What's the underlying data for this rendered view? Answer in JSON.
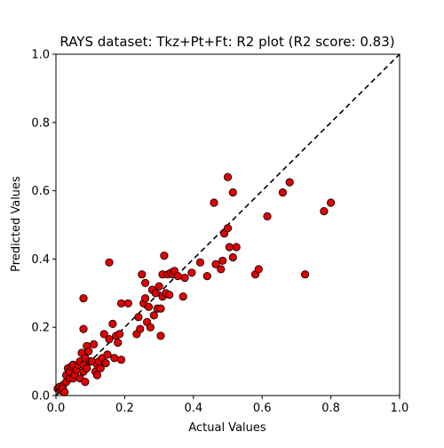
{
  "chart_data": {
    "type": "scatter",
    "title": "RAYS dataset: Tkz+Pt+Ft: R2 plot (R2 score: 0.83)",
    "xlabel": "Actual Values",
    "ylabel": "Predicted Values",
    "xlim": [
      0.0,
      1.0
    ],
    "ylim": [
      0.0,
      1.0
    ],
    "xticks": [
      "0.0",
      "0.2",
      "0.4",
      "0.6",
      "0.8",
      "1.0"
    ],
    "yticks": [
      "0.0",
      "0.2",
      "0.4",
      "0.6",
      "0.8",
      "1.0"
    ],
    "grid": false,
    "reference_line": {
      "from": [
        0,
        0
      ],
      "to": [
        1,
        1
      ],
      "style": "dashed",
      "color": "#000000"
    },
    "marker_color": "#e00000",
    "marker_edge": "#000000",
    "points": [
      [
        0.005,
        0.02
      ],
      [
        0.01,
        0.025
      ],
      [
        0.015,
        0.015
      ],
      [
        0.02,
        0.03
      ],
      [
        0.02,
        0.02
      ],
      [
        0.025,
        0.01
      ],
      [
        0.03,
        0.04
      ],
      [
        0.03,
        0.06
      ],
      [
        0.035,
        0.08
      ],
      [
        0.04,
        0.05
      ],
      [
        0.04,
        0.07
      ],
      [
        0.045,
        0.085
      ],
      [
        0.05,
        0.05
      ],
      [
        0.05,
        0.09
      ],
      [
        0.055,
        0.06
      ],
      [
        0.06,
        0.075
      ],
      [
        0.065,
        0.09
      ],
      [
        0.07,
        0.05
      ],
      [
        0.07,
        0.1
      ],
      [
        0.075,
        0.125
      ],
      [
        0.08,
        0.07
      ],
      [
        0.08,
        0.09
      ],
      [
        0.085,
        0.04
      ],
      [
        0.085,
        0.11
      ],
      [
        0.09,
        0.145
      ],
      [
        0.09,
        0.08
      ],
      [
        0.095,
        0.13
      ],
      [
        0.1,
        0.1
      ],
      [
        0.105,
        0.1
      ],
      [
        0.11,
        0.15
      ],
      [
        0.115,
        0.07
      ],
      [
        0.12,
        0.06
      ],
      [
        0.12,
        0.09
      ],
      [
        0.125,
        0.1
      ],
      [
        0.13,
        0.08
      ],
      [
        0.135,
        0.11
      ],
      [
        0.14,
        0.18
      ],
      [
        0.145,
        0.095
      ],
      [
        0.15,
        0.12
      ],
      [
        0.155,
        0.165
      ],
      [
        0.165,
        0.21
      ],
      [
        0.17,
        0.11
      ],
      [
        0.175,
        0.175
      ],
      [
        0.18,
        0.155
      ],
      [
        0.185,
        0.18
      ],
      [
        0.19,
        0.27
      ],
      [
        0.19,
        0.105
      ],
      [
        0.21,
        0.27
      ],
      [
        0.08,
        0.285
      ],
      [
        0.08,
        0.195
      ],
      [
        0.155,
        0.39
      ],
      [
        0.235,
        0.18
      ],
      [
        0.24,
        0.23
      ],
      [
        0.245,
        0.195
      ],
      [
        0.25,
        0.355
      ],
      [
        0.255,
        0.27
      ],
      [
        0.26,
        0.285
      ],
      [
        0.26,
        0.33
      ],
      [
        0.265,
        0.215
      ],
      [
        0.27,
        0.26
      ],
      [
        0.275,
        0.2
      ],
      [
        0.28,
        0.31
      ],
      [
        0.285,
        0.235
      ],
      [
        0.29,
        0.3
      ],
      [
        0.295,
        0.255
      ],
      [
        0.3,
        0.32
      ],
      [
        0.305,
        0.255
      ],
      [
        0.305,
        0.175
      ],
      [
        0.31,
        0.29
      ],
      [
        0.31,
        0.355
      ],
      [
        0.315,
        0.41
      ],
      [
        0.32,
        0.3
      ],
      [
        0.325,
        0.355
      ],
      [
        0.33,
        0.295
      ],
      [
        0.335,
        0.36
      ],
      [
        0.34,
        0.355
      ],
      [
        0.345,
        0.365
      ],
      [
        0.355,
        0.35
      ],
      [
        0.37,
        0.29
      ],
      [
        0.375,
        0.345
      ],
      [
        0.395,
        0.36
      ],
      [
        0.42,
        0.39
      ],
      [
        0.44,
        0.35
      ],
      [
        0.46,
        0.565
      ],
      [
        0.465,
        0.385
      ],
      [
        0.48,
        0.37
      ],
      [
        0.485,
        0.395
      ],
      [
        0.49,
        0.475
      ],
      [
        0.5,
        0.64
      ],
      [
        0.5,
        0.49
      ],
      [
        0.505,
        0.435
      ],
      [
        0.515,
        0.405
      ],
      [
        0.515,
        0.595
      ],
      [
        0.525,
        0.435
      ],
      [
        0.58,
        0.355
      ],
      [
        0.59,
        0.37
      ],
      [
        0.615,
        0.525
      ],
      [
        0.66,
        0.595
      ],
      [
        0.68,
        0.625
      ],
      [
        0.725,
        0.355
      ],
      [
        0.78,
        0.54
      ],
      [
        0.8,
        0.565
      ]
    ]
  }
}
